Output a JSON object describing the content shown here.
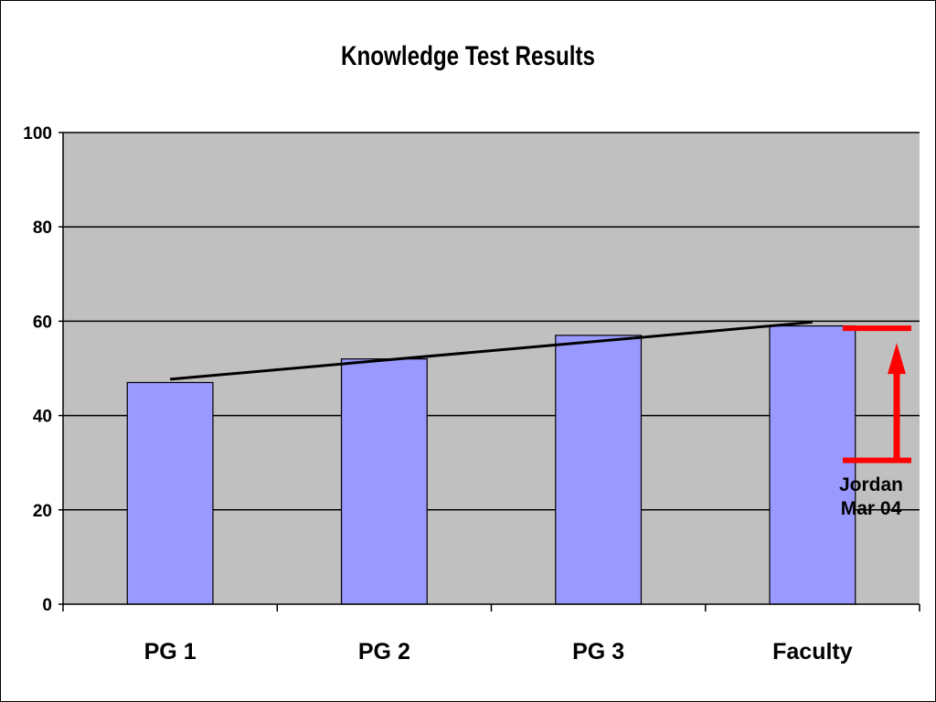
{
  "chart_data": {
    "type": "bar",
    "title": "Knowledge Test Results",
    "xlabel": "",
    "ylabel": "",
    "categories": [
      "PG 1",
      "PG 2",
      "PG 3",
      "Faculty"
    ],
    "values": [
      47,
      52,
      57,
      59
    ],
    "ylim": [
      0,
      100
    ],
    "yticks": [
      0,
      20,
      40,
      60,
      80,
      100
    ],
    "grid": true,
    "legend": "none",
    "trendline": {
      "from": 47.7,
      "to": 59.8
    },
    "annotation": {
      "lines": [
        "Jordan",
        "Mar 04"
      ],
      "range": [
        30.5,
        58.5
      ]
    }
  },
  "colors": {
    "plot_background": "#c0c0c0",
    "bar_fill": "#9999ff",
    "bar_stroke": "#000000",
    "trendline": "#000000",
    "annotation_marker": "#ff0000"
  }
}
